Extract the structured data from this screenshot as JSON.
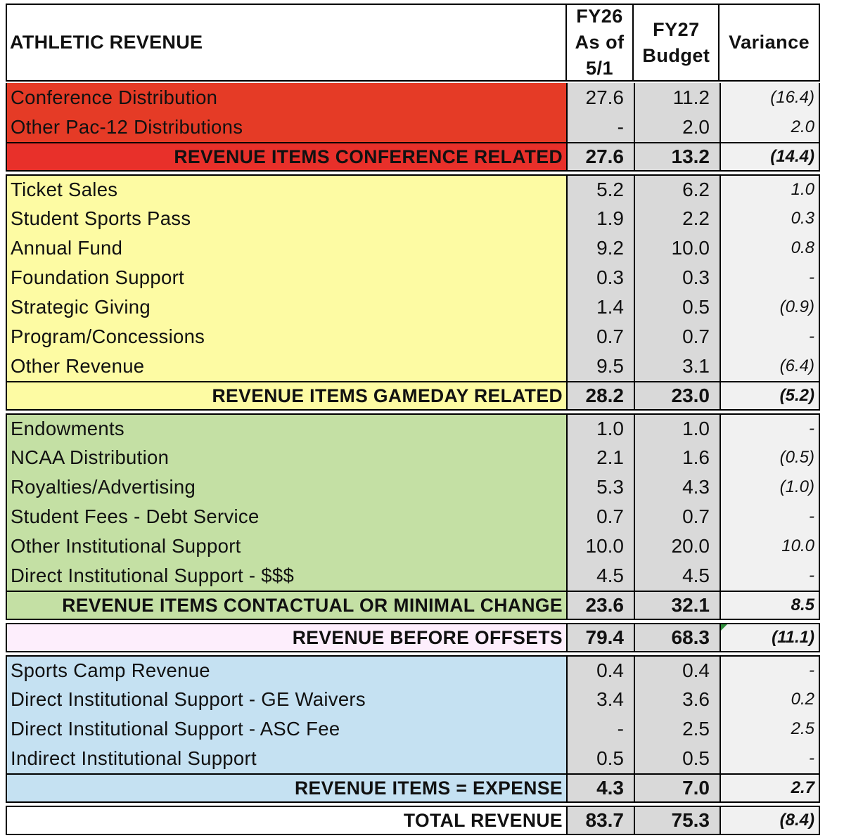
{
  "header": {
    "title": "ATHLETIC REVENUE",
    "col_fy26": [
      "FY26",
      "As of",
      "5/1"
    ],
    "col_fy27": [
      "FY27",
      "Budget"
    ],
    "col_variance": "Variance"
  },
  "colors": {
    "conference": "#e53b26",
    "conference_total": "#e8302a",
    "gameday": "#fdfba3",
    "contractual": "#c4e0a4",
    "offsets_total": "#fdeefc",
    "expense": "#c5e1f2",
    "value_cells": "#d9d9d9",
    "variance_cells": "#f1f1f1"
  },
  "sections": [
    {
      "id": "conference",
      "items": [
        {
          "label": "Conference Distribution",
          "fy26": "27.6",
          "fy27": "11.2",
          "variance": "(16.4)"
        },
        {
          "label": "Other Pac-12 Distributions",
          "fy26": "-",
          "fy27": "2.0",
          "variance": "2.0"
        }
      ],
      "total": {
        "label": "REVENUE ITEMS CONFERENCE RELATED",
        "fy26": "27.6",
        "fy27": "13.2",
        "variance": "(14.4)"
      }
    },
    {
      "id": "gameday",
      "items": [
        {
          "label": "Ticket Sales",
          "fy26": "5.2",
          "fy27": "6.2",
          "variance": "1.0"
        },
        {
          "label": "Student Sports Pass",
          "fy26": "1.9",
          "fy27": "2.2",
          "variance": "0.3"
        },
        {
          "label": "Annual Fund",
          "fy26": "9.2",
          "fy27": "10.0",
          "variance": "0.8"
        },
        {
          "label": "Foundation Support",
          "fy26": "0.3",
          "fy27": "0.3",
          "variance": "-"
        },
        {
          "label": "Strategic Giving",
          "fy26": "1.4",
          "fy27": "0.5",
          "variance": "(0.9)"
        },
        {
          "label": "Program/Concessions",
          "fy26": "0.7",
          "fy27": "0.7",
          "variance": "-"
        },
        {
          "label": "Other Revenue",
          "fy26": "9.5",
          "fy27": "3.1",
          "variance": "(6.4)"
        }
      ],
      "total": {
        "label": "REVENUE ITEMS GAMEDAY RELATED",
        "fy26": "28.2",
        "fy27": "23.0",
        "variance": "(5.2)"
      }
    },
    {
      "id": "contractual",
      "items": [
        {
          "label": "Endowments",
          "fy26": "1.0",
          "fy27": "1.0",
          "variance": "-"
        },
        {
          "label": "NCAA Distribution",
          "fy26": "2.1",
          "fy27": "1.6",
          "variance": "(0.5)"
        },
        {
          "label": "Royalties/Advertising",
          "fy26": "5.3",
          "fy27": "4.3",
          "variance": "(1.0)"
        },
        {
          "label": "Student Fees - Debt Service",
          "fy26": "0.7",
          "fy27": "0.7",
          "variance": "-"
        },
        {
          "label": "Other Institutional Support",
          "fy26": "10.0",
          "fy27": "20.0",
          "variance": "10.0"
        },
        {
          "label": "Direct Institutional Support - $$$",
          "fy26": "4.5",
          "fy27": "4.5",
          "variance": "-"
        }
      ],
      "total": {
        "label": "REVENUE ITEMS CONTACTUAL OR MINIMAL CHANGE",
        "fy26": "23.6",
        "fy27": "32.1",
        "variance": "8.5"
      }
    }
  ],
  "before_offsets": {
    "label": "REVENUE BEFORE OFFSETS",
    "fy26": "79.4",
    "fy27": "68.3",
    "variance": "(11.1)"
  },
  "expense_section": {
    "items": [
      {
        "label": "Sports Camp Revenue",
        "fy26": "0.4",
        "fy27": "0.4",
        "variance": "-"
      },
      {
        "label": "Direct Institutional Support - GE Waivers",
        "fy26": "3.4",
        "fy27": "3.6",
        "variance": "0.2"
      },
      {
        "label": "Direct Institutional Support - ASC Fee",
        "fy26": "-",
        "fy27": "2.5",
        "variance": "2.5"
      },
      {
        "label": "Indirect Institutional Support",
        "fy26": "0.5",
        "fy27": "0.5",
        "variance": "-"
      }
    ],
    "total": {
      "label": "REVENUE ITEMS = EXPENSE",
      "fy26": "4.3",
      "fy27": "7.0",
      "variance": "2.7"
    }
  },
  "grand_total": {
    "label": "TOTAL REVENUE",
    "fy26": "83.7",
    "fy27": "75.3",
    "variance": "(8.4)"
  }
}
